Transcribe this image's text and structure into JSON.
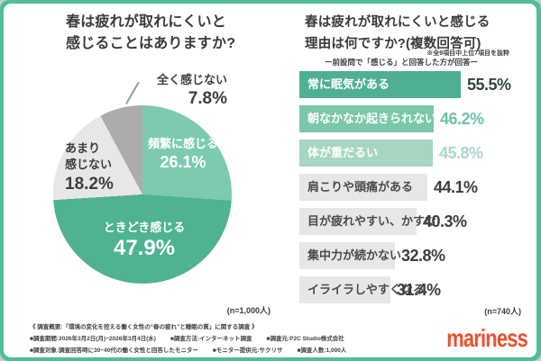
{
  "colors": {
    "frame_green": "#4FBD99",
    "card_bg": "#FFFFFF",
    "title_text": "#3A3A3A",
    "footer_text": "#3F3F3F",
    "logo_orange": "#EE4F2E"
  },
  "pie_section": {
    "title_line1": "春は疲れが取れにくいと",
    "title_line2": "感じることはありますか?",
    "n_label": "(n=1,000人)"
  },
  "bar_section": {
    "title_line1": "春は疲れが取れにくいと感じる",
    "title_line2": "理由は何ですか?(複数回答可)",
    "note": "※全9項目中上位7項目を抜粋",
    "subtitle": "ー前設問で「感じる」と回答した方が回答ー",
    "n_label": "(n=740人)"
  },
  "chart_data": [
    {
      "type": "pie",
      "title": "春は疲れが取れにくいと感じることはありますか?",
      "n_label": "(n=1,000人)",
      "start_angle_deg": 0,
      "direction": "clockwise",
      "slices": [
        {
          "label": "頻繁に感じる",
          "label_lines": [
            "頻繁に感じる"
          ],
          "value": 26.1,
          "pct_label": "26.1%",
          "color": "#7DCBAE"
        },
        {
          "label": "ときどき感じる",
          "label_lines": [
            "ときどき感じる"
          ],
          "value": 47.9,
          "pct_label": "47.9%",
          "color": "#4FB293"
        },
        {
          "label": "あまり感じない",
          "label_lines": [
            "あまり",
            "感じない"
          ],
          "value": 18.2,
          "pct_label": "18.2%",
          "color": "#E7E7E6"
        },
        {
          "label": "全く感じない",
          "label_lines": [
            "全く感じない"
          ],
          "value": 7.8,
          "pct_label": "7.8%",
          "color": "#ACACAB"
        }
      ]
    },
    {
      "type": "bar",
      "orientation": "horizontal",
      "title": "春は疲れが取れにくいと感じる理由は何ですか?(複数回答可)",
      "note": "※全9項目中上位7項目を抜粋",
      "subtitle": "ー前設問で「感じる」と回答した方が回答ー",
      "n_label": "(n=740人)",
      "xlim": [
        0,
        60
      ],
      "categories": [
        "常に眠気がある",
        "朝なかなか起きられない",
        "体が重だるい",
        "肩こりや頭痛がある",
        "目が疲れやすい、かすむ",
        "集中力が続かない",
        "イライラしやすくなる"
      ],
      "values": [
        55.5,
        46.2,
        45.8,
        44.1,
        40.3,
        32.8,
        31.4
      ],
      "items": [
        {
          "label": "常に眠気がある",
          "value": 55.5,
          "pct_label": "55.5%",
          "bar_color": "#4FAF93",
          "label_color": "#FFFFFF",
          "value_color": "#2C453C"
        },
        {
          "label": "朝なかなか起きられない",
          "value": 46.2,
          "pct_label": "46.2%",
          "bar_color": "#7BC7AA",
          "label_color": "#FFFFFF",
          "value_color": "#6EC2A4"
        },
        {
          "label": "体が重だるい",
          "value": 45.8,
          "pct_label": "45.8%",
          "bar_color": "#A6D6C1",
          "label_color": "#FFFFFF",
          "value_color": "#A9D8C4"
        },
        {
          "label": "肩こりや頭痛がある",
          "value": 44.1,
          "pct_label": "44.1%",
          "bar_color": "#E7E7E7",
          "label_color": "#4A4A4A",
          "value_color": "#3D3D3D"
        },
        {
          "label": "目が疲れやすい、かすむ",
          "value": 40.3,
          "pct_label": "40.3%",
          "bar_color": "#E7E7E7",
          "label_color": "#4A4A4A",
          "value_color": "#3D3D3D"
        },
        {
          "label": "集中力が続かない",
          "value": 32.8,
          "pct_label": "32.8%",
          "bar_color": "#E7E7E7",
          "label_color": "#4A4A4A",
          "value_color": "#3D3D3D"
        },
        {
          "label": "イライラしやすくなる",
          "value": 31.4,
          "pct_label": "31.4%",
          "bar_color": "#E7E7E7",
          "label_color": "#4A4A4A",
          "value_color": "#3D3D3D"
        }
      ]
    }
  ],
  "footer": {
    "line1": "《 調査概要:「環境の変化を控える働く女性の“春の疲れ”と睡眠の質」に関する調査 》",
    "line2": [
      "■調査期間:2026年3月2日(月)~2026年3月4日(水)",
      "■調査方法:インターネット調査",
      "■調査元:P2C Studio株式会社"
    ],
    "line3": [
      "■調査対象:調査回答時に30~40代の働く女性と回答したモニター",
      "■モニター提供元:サクリサ",
      "■調査人数:1,000人"
    ],
    "logo": "mariness"
  }
}
